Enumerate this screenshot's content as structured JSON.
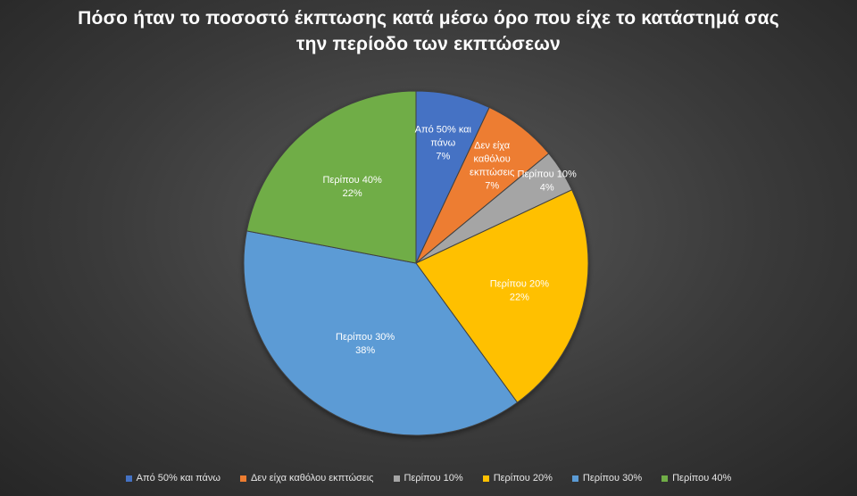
{
  "chart_data": {
    "type": "pie",
    "title_lines": [
      "Πόσο ήταν το ποσοστό έκπτωσης κατά μέσω όρο που είχε το κατάστημά σας",
      "την περίοδο των εκπτώσεων"
    ],
    "legend_position": "bottom",
    "slices": [
      {
        "name": "Από 50% και πάνω",
        "value": 7,
        "label_lines": [
          "Από 50% και",
          "πάνω",
          "7%"
        ],
        "color": "#4472C4"
      },
      {
        "name": "Δεν είχα καθόλου εκπτώσεις",
        "value": 7,
        "label_lines": [
          "Δεν είχα",
          "καθόλου",
          "εκπτώσεις",
          "7%"
        ],
        "color": "#ED7D31"
      },
      {
        "name": "Περίπου 10%",
        "value": 4,
        "label_lines": [
          "Περίπου 10%",
          "4%"
        ],
        "color": "#A5A5A5"
      },
      {
        "name": "Περίπου 20%",
        "value": 22,
        "label_lines": [
          "Περίπου 20%",
          "22%"
        ],
        "color": "#FFC000"
      },
      {
        "name": "Περίπου 30%",
        "value": 38,
        "label_lines": [
          "Περίπου 30%",
          "38%"
        ],
        "color": "#5B9BD5"
      },
      {
        "name": "Περίπου 40%",
        "value": 22,
        "label_lines": [
          "Περίπου 40%",
          "22%"
        ],
        "color": "#70AD47"
      }
    ]
  }
}
